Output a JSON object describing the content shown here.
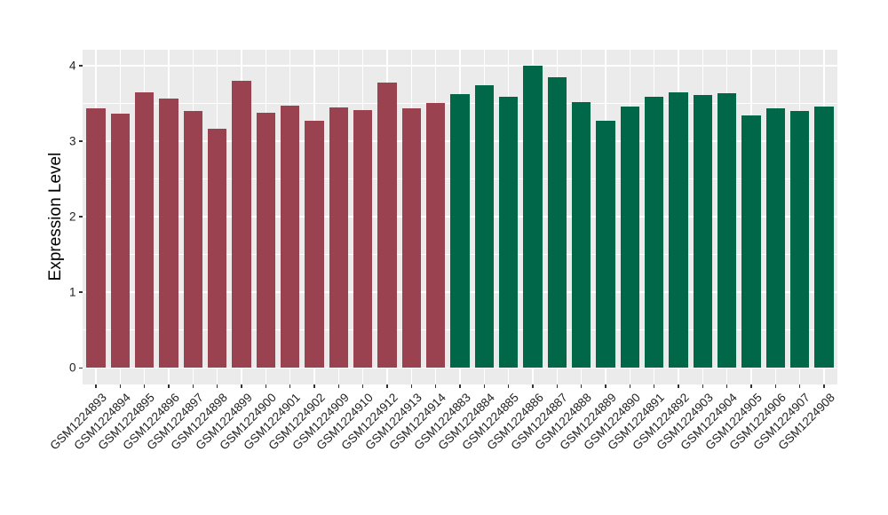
{
  "chart_data": {
    "type": "bar",
    "title": "",
    "xlabel": "",
    "ylabel": "Expression Level",
    "ylim": [
      -0.22,
      4.21
    ],
    "yticks": [
      0,
      1,
      2,
      3,
      4
    ],
    "ytick_labels": [
      "0",
      "1",
      "2",
      "3",
      "4"
    ],
    "grid": "horizontal major+minor, vertical major at category centers",
    "legend_position": "none",
    "categories": [
      "GSM1224893",
      "GSM1224894",
      "GSM1224895",
      "GSM1224896",
      "GSM1224897",
      "GSM1224898",
      "GSM1224899",
      "GSM1224900",
      "GSM1224901",
      "GSM1224902",
      "GSM1224909",
      "GSM1224910",
      "GSM1224912",
      "GSM1224913",
      "GSM1224914",
      "GSM1224883",
      "GSM1224884",
      "GSM1224885",
      "GSM1224886",
      "GSM1224887",
      "GSM1224888",
      "GSM1224889",
      "GSM1224890",
      "GSM1224891",
      "GSM1224892",
      "GSM1224903",
      "GSM1224904",
      "GSM1224905",
      "GSM1224906",
      "GSM1224907",
      "GSM1224908"
    ],
    "values": [
      3.44,
      3.36,
      3.65,
      3.56,
      3.4,
      3.16,
      3.8,
      3.38,
      3.47,
      3.27,
      3.45,
      3.41,
      3.77,
      3.44,
      3.51,
      3.62,
      3.74,
      3.59,
      4.0,
      3.84,
      3.52,
      3.27,
      3.46,
      3.59,
      3.65,
      3.61,
      3.64,
      3.34,
      3.43,
      3.4,
      3.46
    ],
    "bar_groups": [
      0,
      0,
      0,
      0,
      0,
      0,
      0,
      0,
      0,
      0,
      0,
      0,
      0,
      0,
      0,
      1,
      1,
      1,
      1,
      1,
      1,
      1,
      1,
      1,
      1,
      1,
      1,
      1,
      1,
      1,
      1
    ],
    "group_colors": [
      "#9A4250",
      "#006849"
    ],
    "panel_bg": "#EBEBEB",
    "grid_color": "#FFFFFF",
    "axis_text_color": "#1F1F1F",
    "tick_mark_color": "#333333"
  }
}
